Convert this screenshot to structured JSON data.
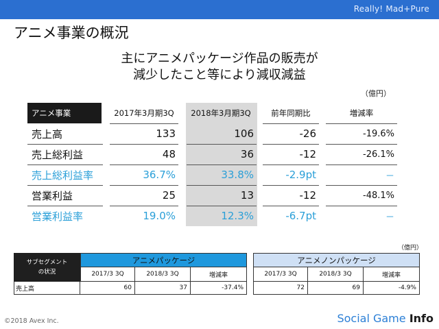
{
  "header": {
    "brand": "Really! Mad+Pure"
  },
  "title": "アニメ事業の概況",
  "headline": {
    "line1": "主にアニメパッケージ作品の販売が",
    "line2": "減少したこと等により減収減益"
  },
  "unit_main": "（億円）",
  "main_table": {
    "columns": [
      "アニメ事業",
      "2017年3月期3Q",
      "2018年3月期3Q",
      "前年同期比",
      "増減率"
    ],
    "rows": [
      {
        "label": "売上高",
        "v2017": "133",
        "v2018": "106",
        "yoy": "-26",
        "rate": "-19.6%",
        "highlight": false
      },
      {
        "label": "売上総利益",
        "v2017": "48",
        "v2018": "36",
        "yoy": "-12",
        "rate": "-26.1%",
        "highlight": false
      },
      {
        "label": "売上総利益率",
        "v2017": "36.7%",
        "v2018": "33.8%",
        "yoy": "-2.9pt",
        "rate": "－",
        "highlight": true
      },
      {
        "label": "営業利益",
        "v2017": "25",
        "v2018": "13",
        "yoy": "-12",
        "rate": "-48.1%",
        "highlight": false
      },
      {
        "label": "営業利益率",
        "v2017": "19.0%",
        "v2018": "12.3%",
        "yoy": "-6.7pt",
        "rate": "－",
        "highlight": true
      }
    ]
  },
  "unit_sub": "（億円）",
  "sub_table": {
    "segment_header_line1": "サブセグメント",
    "segment_header_line2": "の状況",
    "group1": "アニメパッケージ",
    "group2": "アニメノンパッケージ",
    "sub_columns": [
      "2017/3 3Q",
      "2018/3 3Q",
      "増減率"
    ],
    "row_label": "売上高",
    "group1_values": [
      "60",
      "37",
      "-37.4%"
    ],
    "group2_values": [
      "72",
      "69",
      "-4.9%"
    ]
  },
  "footer": {
    "copyright": "©2018 Avex Inc.",
    "logo_main": "Social Game ",
    "logo_bold": "Info"
  },
  "colors": {
    "top_bar": "#2b6fd0",
    "accent_blue": "#2a9fd8",
    "package_header": "#1f98dd",
    "nonpackage_header": "#cfe0f5",
    "highlight_column": "#d9d9d9"
  }
}
